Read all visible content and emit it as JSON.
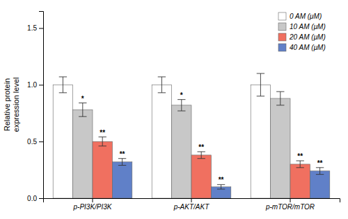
{
  "chart_data": {
    "type": "bar",
    "categories": [
      "p-PI3K/PI3K",
      "p-AKT/AKT",
      "p-mTOR/mTOR"
    ],
    "series": [
      {
        "name": "0 AM (μM)",
        "color": "#FFFFFF",
        "values": [
          1.0,
          1.0,
          1.0
        ],
        "errors": [
          0.07,
          0.07,
          0.1
        ],
        "significance": [
          null,
          null,
          null
        ]
      },
      {
        "name": "10 AM (μM)",
        "color": "#C8C8C8",
        "values": [
          0.78,
          0.82,
          0.88
        ],
        "errors": [
          0.06,
          0.05,
          0.06
        ],
        "significance": [
          "*",
          "*",
          null
        ]
      },
      {
        "name": "20 AM (μM)",
        "color": "#F07060",
        "values": [
          0.5,
          0.38,
          0.3
        ],
        "errors": [
          0.04,
          0.03,
          0.03
        ],
        "significance": [
          "**",
          "**",
          "**"
        ]
      },
      {
        "name": "40 AM (μM)",
        "color": "#6080C8",
        "values": [
          0.32,
          0.1,
          0.24
        ],
        "errors": [
          0.03,
          0.02,
          0.03
        ],
        "significance": [
          "**",
          "**",
          "**"
        ]
      }
    ],
    "ylabel": "Relative protein\nexpression level",
    "ylim": [
      0,
      1.65
    ],
    "yticks": [
      {
        "value": 0.0,
        "label": "0.0"
      },
      0.5,
      {
        "value": 1.0,
        "label": "1.0"
      },
      1.5
    ],
    "legend": "upper right",
    "grid": false
  }
}
